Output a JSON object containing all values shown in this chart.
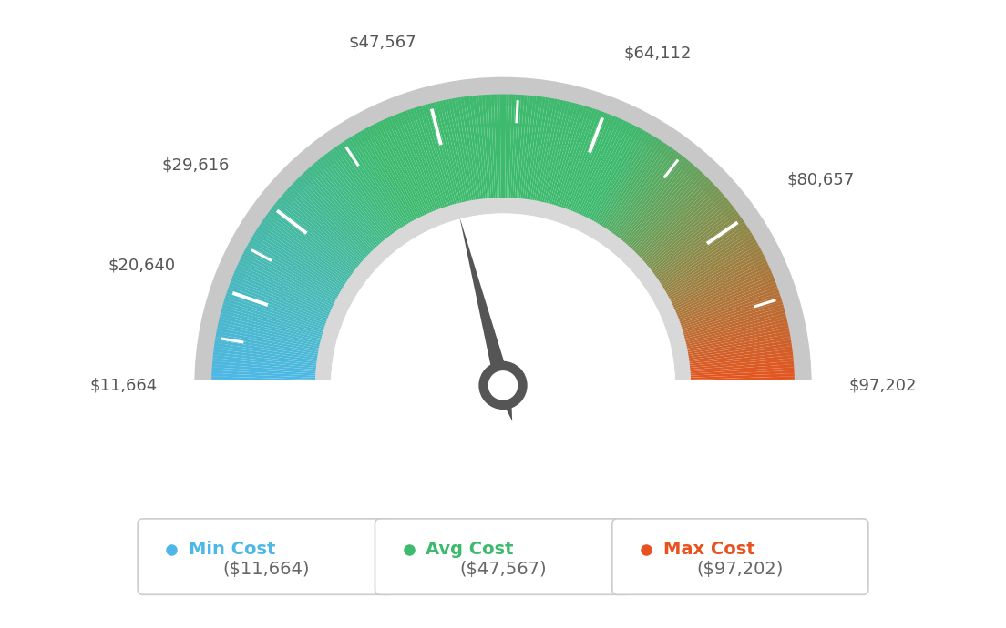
{
  "min_val": 11664,
  "avg_val": 47567,
  "max_val": 97202,
  "tick_labels": [
    "$11,664",
    "$20,640",
    "$29,616",
    "$47,567",
    "$64,112",
    "$80,657",
    "$97,202"
  ],
  "tick_values": [
    11664,
    20640,
    29616,
    47567,
    64112,
    80657,
    97202
  ],
  "legend": [
    {
      "label": "Min Cost",
      "value": "($11,664)",
      "color": "#4db8e8"
    },
    {
      "label": "Avg Cost",
      "value": "($47,567)",
      "color": "#3dba6e"
    },
    {
      "label": "Max Cost",
      "value": "($97,202)",
      "color": "#e8521e"
    }
  ],
  "background_color": "#ffffff",
  "color_stops": [
    [
      0.0,
      [
        0.302,
        0.722,
        0.91
      ]
    ],
    [
      0.35,
      [
        0.239,
        0.729,
        0.431
      ]
    ],
    [
      0.5,
      [
        0.239,
        0.729,
        0.431
      ]
    ],
    [
      0.65,
      [
        0.239,
        0.729,
        0.431
      ]
    ],
    [
      1.0,
      [
        0.91,
        0.322,
        0.118
      ]
    ]
  ],
  "outer_gray_color": "#c8c8c8",
  "inner_gray_color": "#d8d8d8",
  "needle_color": "#555555",
  "label_color": "#555555",
  "label_fontsize": 13,
  "legend_label_fontsize": 14,
  "legend_value_fontsize": 14
}
